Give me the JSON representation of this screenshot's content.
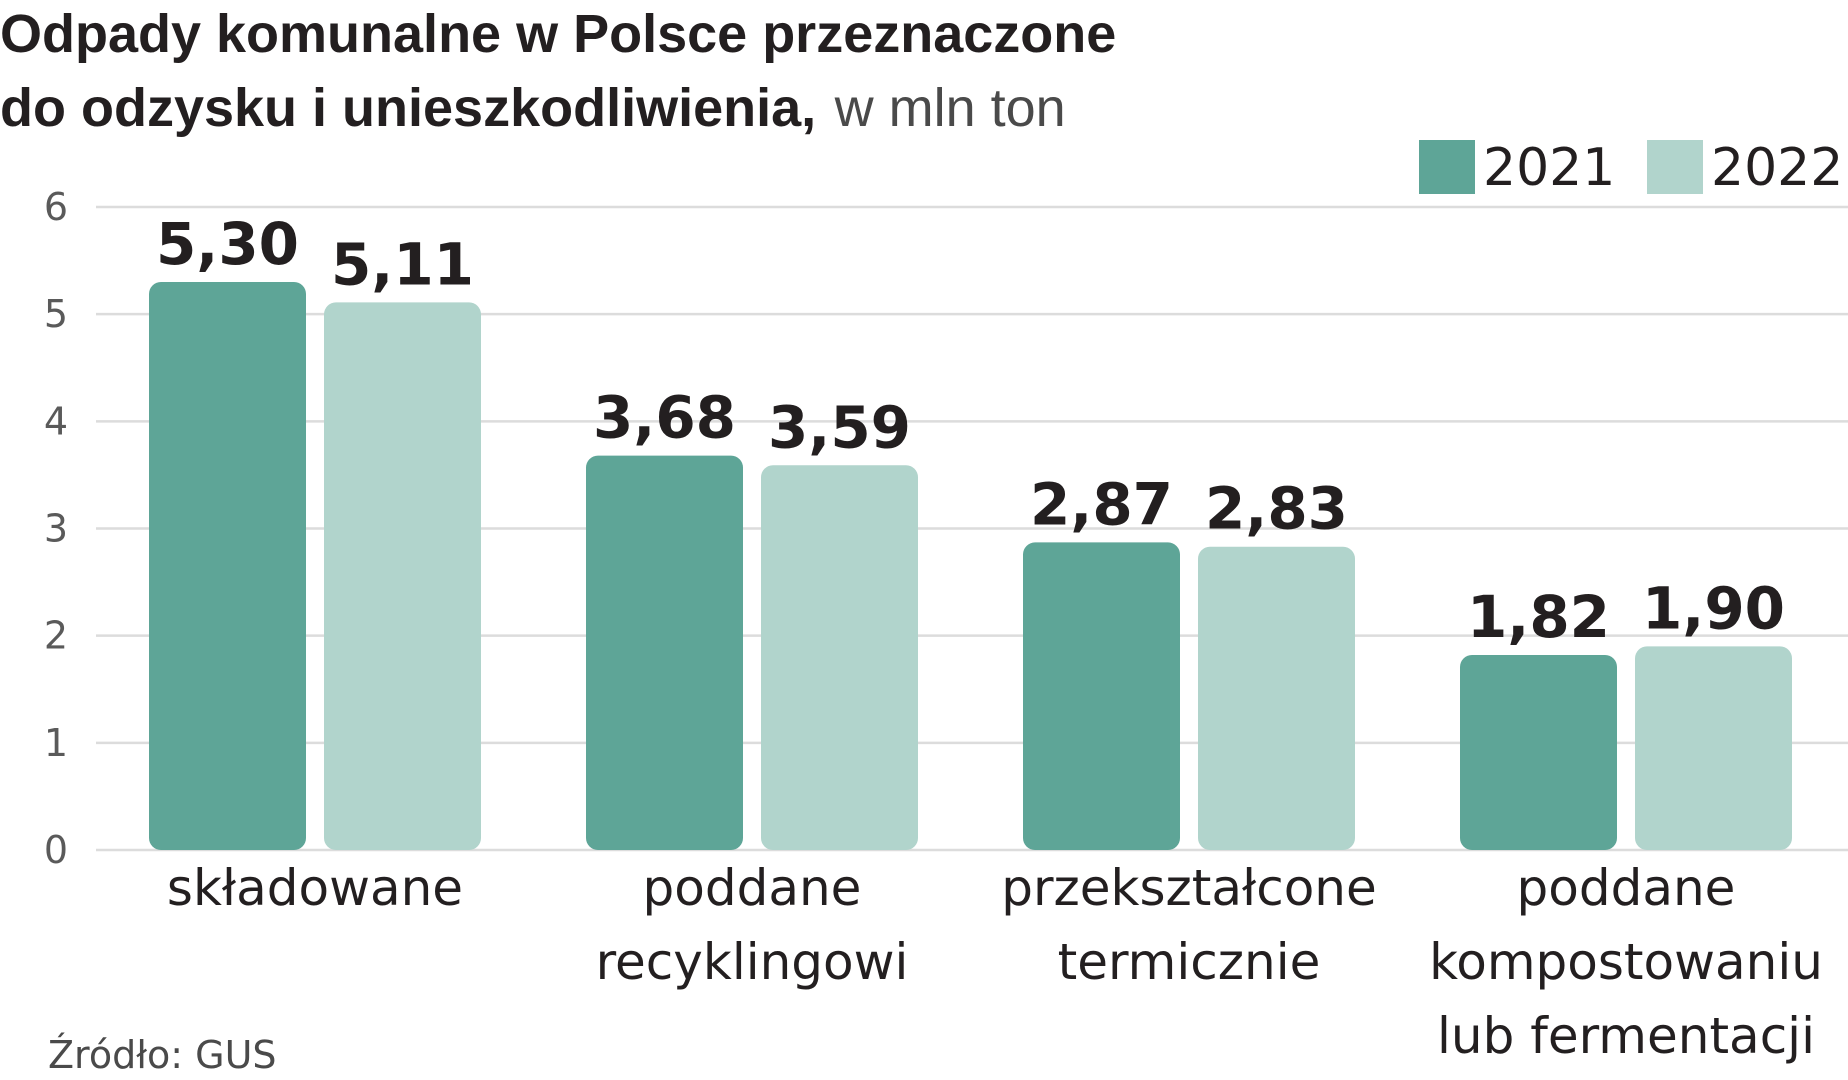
{
  "chart_data": {
    "type": "bar",
    "title_line1": "Odpady komunalne w Polsce przeznaczone",
    "title_line2_bold": "do odzysku i unieszkodliwienia,",
    "title_line2_unit": "w mln ton",
    "categories": [
      [
        "składowane"
      ],
      [
        "poddane",
        "recyklingowi"
      ],
      [
        "przekształcone",
        "termicznie"
      ],
      [
        "poddane",
        "kompostowaniu",
        "lub fermentacji"
      ]
    ],
    "series": [
      {
        "name": "2021",
        "color": "#5ea597",
        "values": [
          5.3,
          3.68,
          2.87,
          1.82
        ],
        "labels": [
          "5,30",
          "3,68",
          "2,87",
          "1,82"
        ]
      },
      {
        "name": "2022",
        "color": "#b1d4cc",
        "values": [
          5.11,
          3.59,
          2.83,
          1.9
        ],
        "labels": [
          "5,11",
          "3,59",
          "2,83",
          "1,90"
        ]
      }
    ],
    "ylim": [
      0,
      6
    ],
    "yticks": [
      "0",
      "1",
      "2",
      "3",
      "4",
      "5",
      "6"
    ],
    "grid": true,
    "legend_position": "top-right",
    "source": "Źródło: GUS"
  }
}
